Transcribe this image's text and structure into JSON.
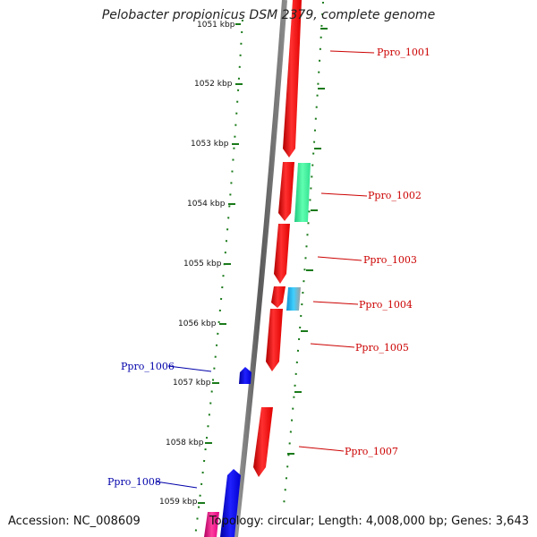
{
  "title": "Pelobacter propionicus DSM 2379, complete genome",
  "accession_text": "Accession: NC_008609",
  "summary_text": "Topology: circular; Length: 4,008,000 bp; Genes: 3,643",
  "colors": {
    "forward_label": "#cc0000",
    "reverse_label": "#0000aa",
    "tick": "#1a7a1a",
    "backbone": "#808080"
  },
  "scale_labels": [
    "1051 kbp",
    "1052 kbp",
    "1053 kbp",
    "1054 kbp",
    "1055 kbp",
    "1056 kbp",
    "1057 kbp",
    "1058 kbp",
    "1059 kbp"
  ],
  "genes": [
    {
      "label": "Ppro_1001",
      "strand": "forward"
    },
    {
      "label": "Ppro_1002",
      "strand": "forward"
    },
    {
      "label": "Ppro_1003",
      "strand": "forward"
    },
    {
      "label": "Ppro_1004",
      "strand": "forward"
    },
    {
      "label": "Ppro_1005",
      "strand": "forward"
    },
    {
      "label": "Ppro_1006",
      "strand": "reverse"
    },
    {
      "label": "Ppro_1007",
      "strand": "forward"
    },
    {
      "label": "Ppro_1008",
      "strand": "reverse"
    }
  ]
}
